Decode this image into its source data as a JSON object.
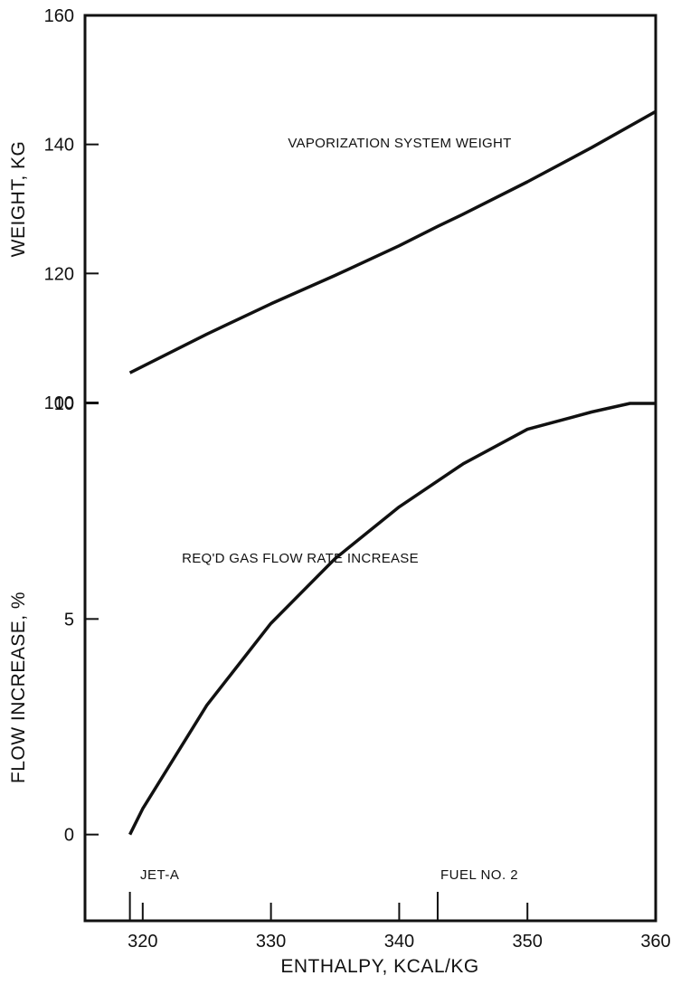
{
  "chart_data": {
    "type": "line",
    "x_axis": {
      "label": "ENTHALPY, KCAL/KG",
      "range": [
        315.5,
        360
      ],
      "ticks": [
        320,
        330,
        340,
        350,
        360
      ],
      "tick_labels": [
        "320",
        "330",
        "340",
        "350",
        "360"
      ],
      "markers": [
        {
          "value": 319,
          "label": "JET-A"
        },
        {
          "value": 343,
          "label": "FUEL NO. 2"
        }
      ]
    },
    "panels": [
      {
        "id": "weight",
        "ylabel": "WEIGHT, KG",
        "ylim": [
          100,
          160
        ],
        "yticks": [
          100,
          120,
          140,
          160
        ],
        "ytick_labels": [
          "100",
          "120",
          "140",
          "160"
        ],
        "series": [
          {
            "name": "VAPORIZATION SYSTEM WEIGHT",
            "x": [
              319,
              320,
              325,
              330,
              335,
              340,
              343,
              345,
              350,
              355,
              360
            ],
            "y": [
              104.6,
              105.6,
              110.6,
              115.3,
              119.7,
              124.3,
              127.3,
              129.2,
              134.2,
              139.5,
              145.1
            ]
          }
        ]
      },
      {
        "id": "flow",
        "ylabel": "FLOW INCREASE, %",
        "ylim": [
          -2,
          10
        ],
        "yticks": [
          0,
          5,
          10
        ],
        "ytick_labels": [
          "0",
          "5",
          "10"
        ],
        "series": [
          {
            "name": "REQ'D GAS FLOW RATE INCREASE",
            "x": [
              319,
              320,
              325,
              330,
              335,
              340,
              345,
              350,
              355,
              358,
              360
            ],
            "y": [
              0.0,
              0.6,
              3.0,
              4.9,
              6.4,
              7.6,
              8.6,
              9.4,
              9.8,
              10.0,
              10.0
            ]
          }
        ]
      }
    ],
    "annotations": [
      "VAPORIZATION SYSTEM WEIGHT",
      "REQ'D GAS FLOW RATE INCREASE"
    ],
    "grid": false,
    "legend": "none"
  }
}
